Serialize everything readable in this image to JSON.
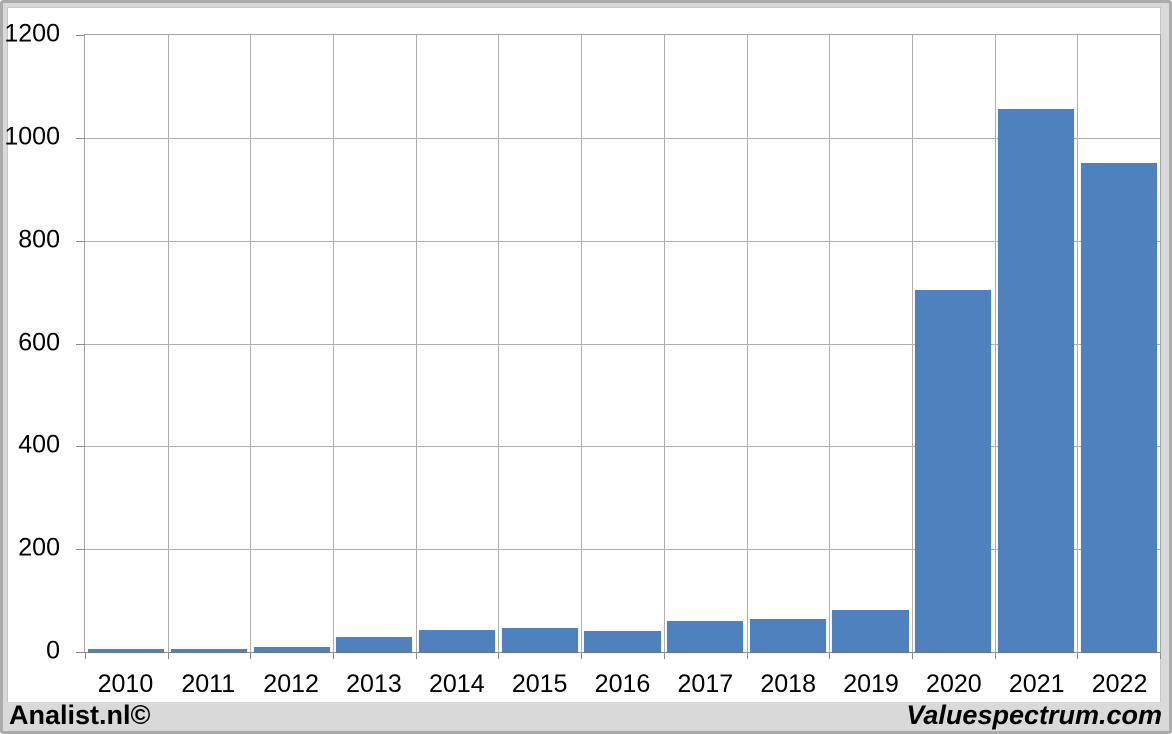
{
  "chart_data": {
    "type": "bar",
    "title": "",
    "xlabel": "",
    "ylabel": "",
    "categories": [
      "2010",
      "2011",
      "2012",
      "2013",
      "2014",
      "2015",
      "2016",
      "2017",
      "2018",
      "2019",
      "2020",
      "2021",
      "2022"
    ],
    "values": [
      6,
      6,
      9,
      29,
      43,
      46,
      41,
      60,
      64,
      82,
      705,
      1056,
      951
    ],
    "ylim": [
      0,
      1200
    ],
    "yticks": [
      0,
      200,
      400,
      600,
      800,
      1000,
      1200
    ],
    "grid": true,
    "legend": "none",
    "bar_color": "#4f81bd"
  },
  "colors": {
    "bar": "#4f81bd",
    "gridline": "#b0b0b0",
    "axis": "#8c8c8c",
    "frame_background": "#d9d9d9",
    "panel_background": "#ffffff",
    "text": "#000000"
  },
  "footer": {
    "left": "Analist.nl©",
    "right": "Valuespectrum.com"
  }
}
